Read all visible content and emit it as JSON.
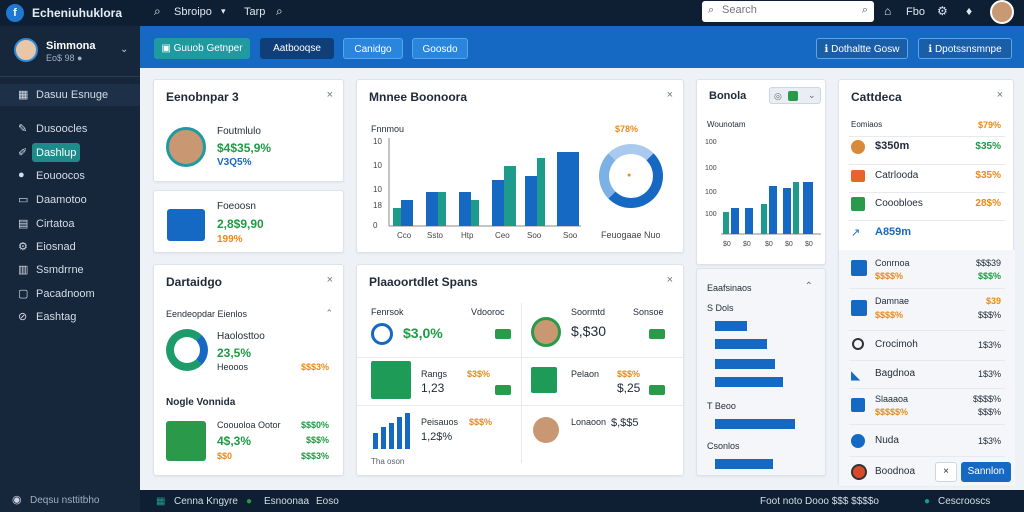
{
  "topbar": {
    "app_name": "Echeniuhuklora",
    "menu_1": "Sbroipo",
    "menu_2": "Tarp",
    "search_placeholder": "Search",
    "help_label": "Fbo"
  },
  "sidebar": {
    "profile_name": "Simmona",
    "profile_sub": "Eo$ 98 ●",
    "section_label": "Dasuu Esnuge",
    "items": [
      {
        "label": "Dusoocles"
      },
      {
        "label": "Dashlup"
      },
      {
        "label": "Eouoocos"
      },
      {
        "label": "Daamotoo"
      },
      {
        "label": "Cirtatoa"
      },
      {
        "label": "Eiosnad"
      },
      {
        "label": "Ssmdrrne"
      },
      {
        "label": "Pacadnoom"
      },
      {
        "label": "Eashtag"
      }
    ],
    "footer_label": "Deqsu nsttitbho"
  },
  "band": {
    "buttons": [
      "Guuob Getnper",
      "Aatbooqse",
      "Canidgo",
      "Goosdo"
    ],
    "right_buttons": [
      "Dothaltte Gosw",
      "Dpotssnsmnpe"
    ]
  },
  "cards": {
    "engager": {
      "title": "Eenobnpar 3",
      "name": "Foutmlulo",
      "value": "$4$35,9%",
      "sub": "V3Q5%"
    },
    "engager2": {
      "name": "Foeoosn",
      "value": "2,8$9,90",
      "sub": "199%"
    },
    "main_chart": {
      "title": "Mnnee Boonoora",
      "chart_label": "Fnnmou",
      "badge": "$78%",
      "donut_label": "Feuogaae Nuo"
    },
    "side_chart": {
      "title": "Bonola",
      "label": "Wounotam"
    },
    "cattdeca": {
      "title": "Cattdeca",
      "header_left": "Eomiaos",
      "header_right": "$79%",
      "rows": [
        {
          "label": "$350m",
          "value": "$35%"
        },
        {
          "label": "Catrlooda",
          "value": "$35%"
        },
        {
          "label": "Cooobloes",
          "value": "28$%"
        },
        {
          "label": "A859m",
          "value": ""
        },
        {
          "label": "Conrnoa",
          "value": "$$$39",
          "sub": "$$$$%"
        },
        {
          "label": "Damnae",
          "value": "$39",
          "sub": "$$$$%"
        },
        {
          "label": "Crocimoh",
          "value": "1$3%"
        },
        {
          "label": "Bagdnoa",
          "value": "1$3%"
        },
        {
          "label": "Slaaaoa",
          "value": "$$$$%"
        },
        {
          "label": "Nuda",
          "value": "1$3%"
        },
        {
          "label": "Boodnoa",
          "value": ""
        }
      ],
      "action_button": "Sannlon"
    },
    "dartaidgo": {
      "title": "Dartaidgo",
      "subtitle": "Eendeopdar Eienlos",
      "pct1": "23,5%",
      "pct_sub1": "$$$3%",
      "name1": "Haolosttoo",
      "sub1": "Heooos",
      "section2": "Nogle Vonnida",
      "name2": "Coouoloa Ootor",
      "pct2": "$$$0%",
      "value2": "4$,3%",
      "pct3": "$$$%",
      "sub2": "$$0",
      "pct4": "$$$3%"
    },
    "plan": {
      "title": "Plaaoortdlet Spans",
      "c1_label": "Fenrsok",
      "c1_right": "Vdooroc",
      "c1_value": "$3,0%",
      "c2_label": "Soormtd",
      "c2_right": "Sonsoe",
      "c2_value": "$,$30",
      "c3_label": "Rangs",
      "c3_pct": "$3$%",
      "c3_value": "1,23",
      "c4_label": "Pelaon",
      "c4_pct": "$$$%",
      "c4_value": "$,25",
      "c5_label": "Peisauos",
      "c5_pct": "$$$%",
      "c5_value": "1,2$%",
      "c6_label": "Lonaoon",
      "c6_value": "$,$$5",
      "footer": "Tha oson"
    },
    "bars_panel": {
      "title": "Eaafsinaos",
      "l1": "S  Dols",
      "l2": "T  Beoo",
      "l3": "Csonlos"
    }
  },
  "footer": {
    "items": [
      "Cenna Kngyre",
      "Esnoonaa",
      "Eoso"
    ],
    "right_text": "Foot noto  Dooo  $$$ $$$$o",
    "status": "Cescrooscs"
  },
  "colors": {
    "accent": "#1669c2",
    "sidebar": "#16263b",
    "green": "#1e9b43",
    "orange": "#e88a1a"
  }
}
